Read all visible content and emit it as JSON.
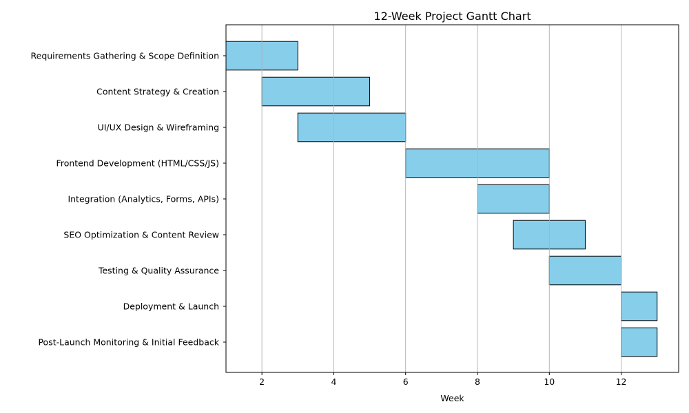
{
  "chart_data": {
    "type": "gantt",
    "title": "12-Week Project Gantt Chart",
    "xlabel": "Week",
    "ylabel": "",
    "xlim": [
      1,
      13.6
    ],
    "xticks": [
      2,
      4,
      6,
      8,
      10,
      12
    ],
    "grid": {
      "x": true,
      "y": false
    },
    "colors": {
      "bar_fill": "#87CEEB",
      "bar_edge": "#000000",
      "grid": "#b0b0b0"
    },
    "tasks": [
      {
        "name": "Requirements Gathering & Scope Definition",
        "start": 1,
        "end": 3
      },
      {
        "name": "Content Strategy & Creation",
        "start": 2,
        "end": 5
      },
      {
        "name": "UI/UX Design & Wireframing",
        "start": 3,
        "end": 6
      },
      {
        "name": "Frontend Development (HTML/CSS/JS)",
        "start": 6,
        "end": 10
      },
      {
        "name": "Integration (Analytics, Forms, APIs)",
        "start": 8,
        "end": 10
      },
      {
        "name": "SEO Optimization & Content Review",
        "start": 9,
        "end": 11
      },
      {
        "name": "Testing & Quality Assurance",
        "start": 10,
        "end": 12
      },
      {
        "name": "Deployment & Launch",
        "start": 12,
        "end": 13
      },
      {
        "name": "Post-Launch Monitoring & Initial Feedback",
        "start": 12,
        "end": 13
      }
    ]
  }
}
